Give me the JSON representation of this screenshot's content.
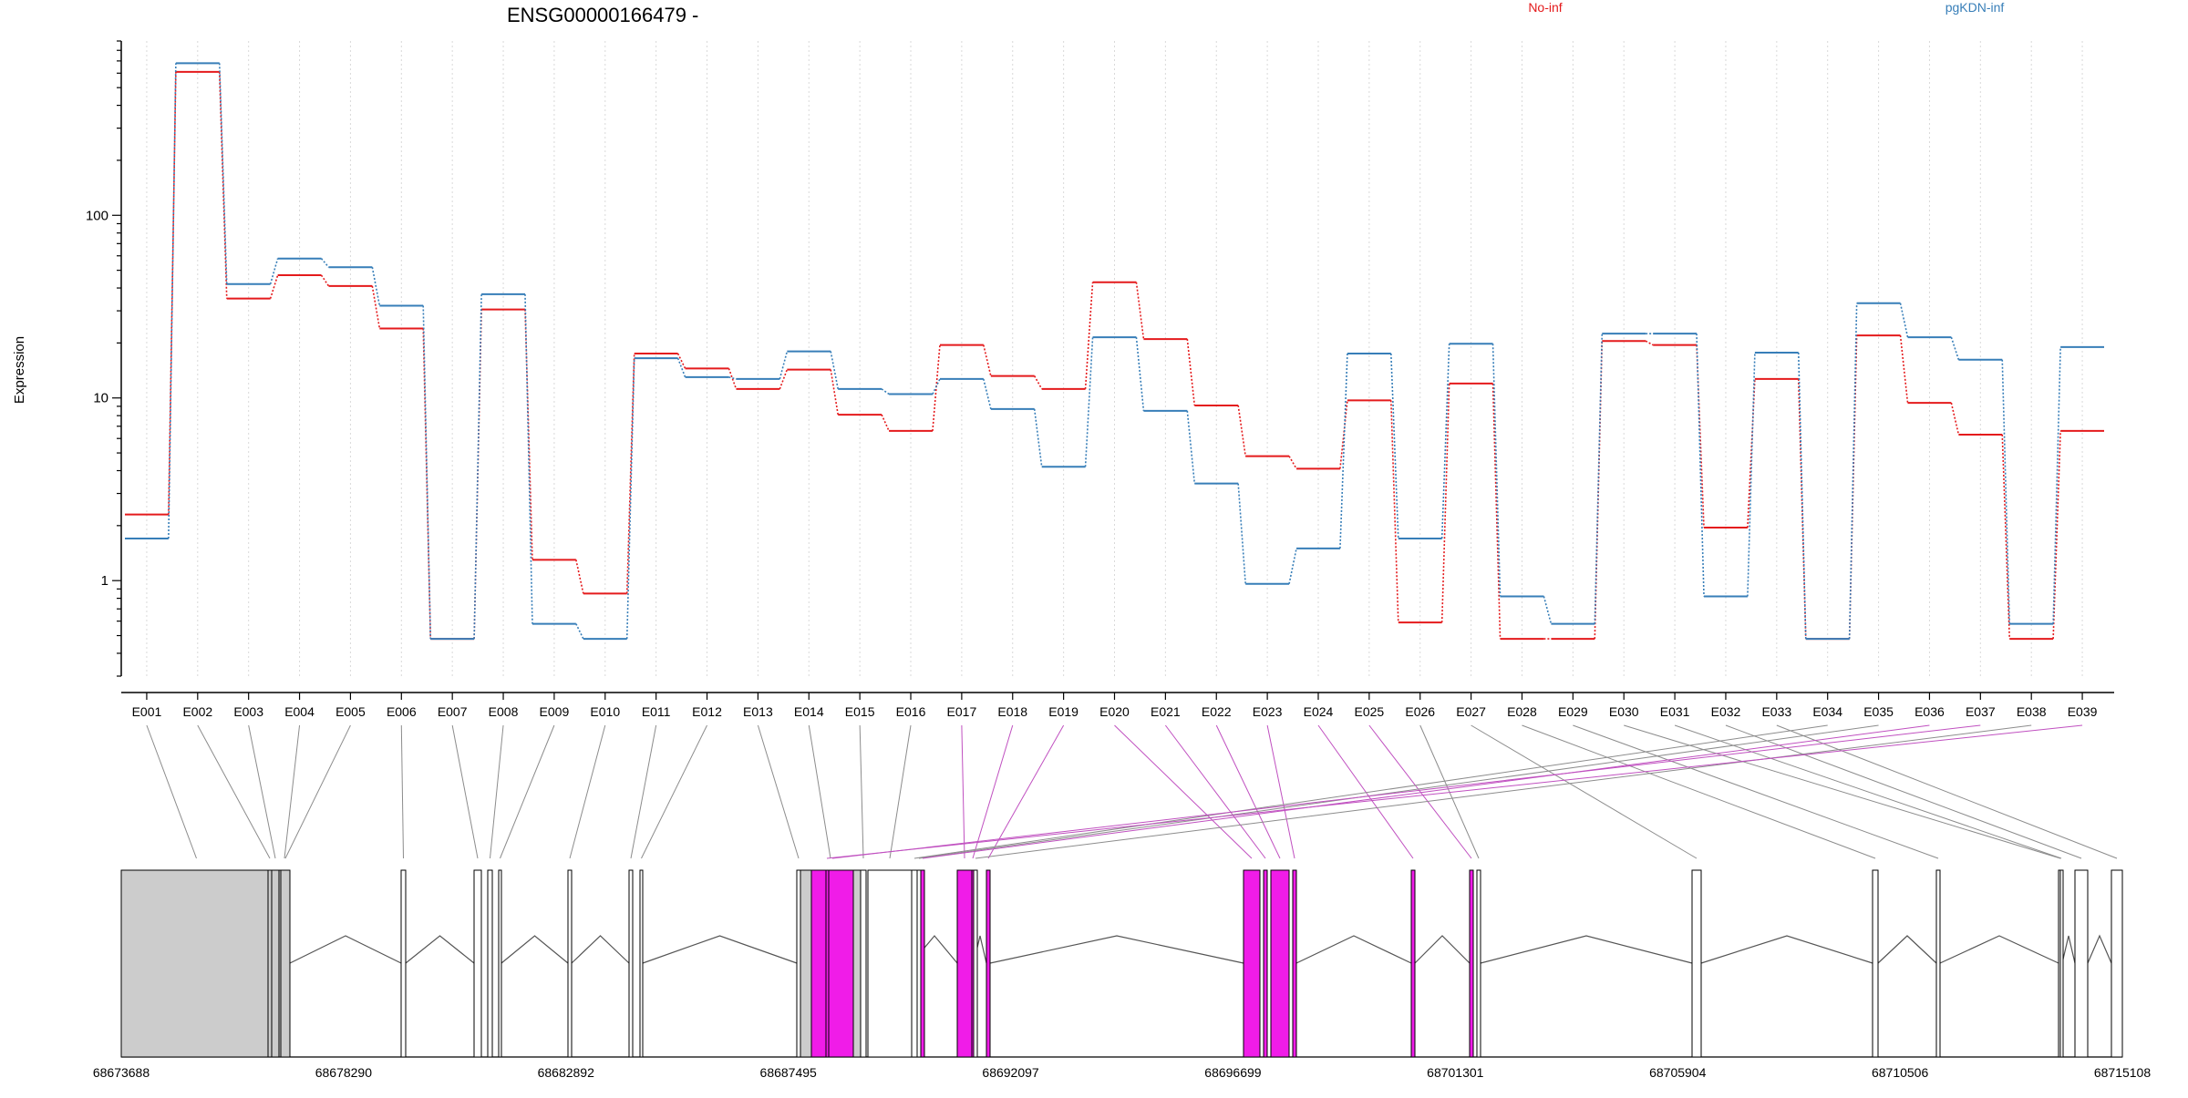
{
  "chart_data": {
    "type": "line",
    "title": "ENSG00000166479 -",
    "ylabel": "Expression",
    "xlabel": "",
    "log_scale_y": true,
    "ylim": [
      0.3,
      900
    ],
    "yticks": [
      1,
      10,
      100
    ],
    "ytick_labels": [
      "1",
      "10",
      "100"
    ],
    "grid": "vertical dotted",
    "legend_placement": "top",
    "colors": {
      "No-inf": "#e41a1c",
      "pgKDN-inf": "#377eb8",
      "highlight": "#f01ce8",
      "exon_fill": "#cccccc"
    },
    "categories": [
      "E001",
      "E002",
      "E003",
      "E004",
      "E005",
      "E006",
      "E007",
      "E008",
      "E009",
      "E010",
      "E011",
      "E012",
      "E013",
      "E014",
      "E015",
      "E016",
      "E017",
      "E018",
      "E019",
      "E020",
      "E021",
      "E022",
      "E023",
      "E024",
      "E025",
      "E026",
      "E027",
      "E028",
      "E029",
      "E030",
      "E031",
      "E032",
      "E033",
      "E034",
      "E035",
      "E036",
      "E037",
      "E038",
      "E039"
    ],
    "series": [
      {
        "name": "No-inf",
        "color": "#e41a1c",
        "values": [
          2.3,
          610,
          35,
          47,
          41,
          24,
          0.48,
          30.5,
          1.3,
          0.85,
          17.5,
          14.5,
          11.2,
          14.3,
          8.1,
          6.6,
          19.5,
          13.2,
          11.2,
          43,
          21,
          9.1,
          4.8,
          4.1,
          9.7,
          0.59,
          12,
          0.48,
          0.48,
          20.5,
          19.5,
          1.95,
          12.7,
          0.48,
          22,
          9.4,
          6.3,
          0.48,
          6.6
        ]
      },
      {
        "name": "pgKDN-inf",
        "color": "#377eb8",
        "values": [
          1.7,
          680,
          42,
          58,
          52,
          32,
          0.48,
          37,
          0.58,
          0.48,
          16.5,
          13,
          12.7,
          18,
          11.2,
          10.5,
          12.7,
          8.7,
          4.2,
          21.5,
          8.5,
          3.4,
          0.96,
          1.5,
          17.5,
          1.7,
          19.8,
          0.82,
          0.58,
          22.5,
          22.5,
          0.82,
          17.7,
          0.48,
          33,
          21.5,
          16.2,
          0.58,
          19
        ]
      }
    ],
    "gene_track": {
      "coordinates": [
        "68673688",
        "68678290",
        "68682892",
        "68687495",
        "68692097",
        "68696699",
        "68701301",
        "68705904",
        "68710506",
        "68715108"
      ],
      "exon_highlights": [
        "E017",
        "E018",
        "E019",
        "E020",
        "E021",
        "E022",
        "E023",
        "E024",
        "E025",
        "E036",
        "E037",
        "E039"
      ]
    }
  }
}
